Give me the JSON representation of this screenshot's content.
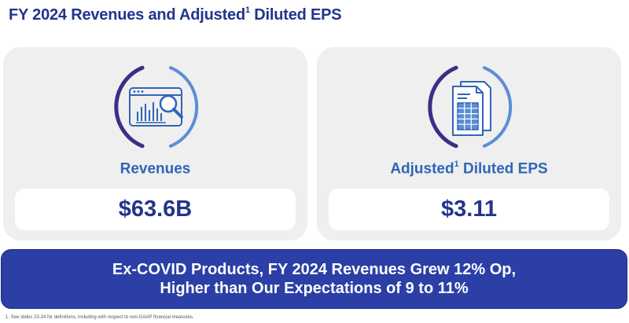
{
  "title": {
    "main": "FY 2024 Revenues and Adjusted",
    "sup": "1",
    "rest": " Diluted EPS"
  },
  "cards": [
    {
      "icon": "revenue-dashboard-icon",
      "label": "Revenues",
      "label_sup": "",
      "label_rest": "",
      "value": "$63.6B"
    },
    {
      "icon": "spreadsheet-document-icon",
      "label": "Adjusted",
      "label_sup": "1",
      "label_rest": " Diluted EPS",
      "value": "$3.11"
    }
  ],
  "banner": {
    "line1": "Ex-COVID Products, FY 2024 Revenues Grew 12% Op,",
    "line2": "Higher than Our Expectations of 9 to 11%"
  },
  "footnote": "1. See slides 23-24 for definitions, including with respect to non-GAAP financial measures.",
  "colors": {
    "navy": "#22348c",
    "accent_blue": "#2f65b7",
    "banner": "#2b3fa6",
    "card_bg": "#efefef",
    "ring_purple": "#3a2f86",
    "ring_light": "#5b8ed6"
  }
}
